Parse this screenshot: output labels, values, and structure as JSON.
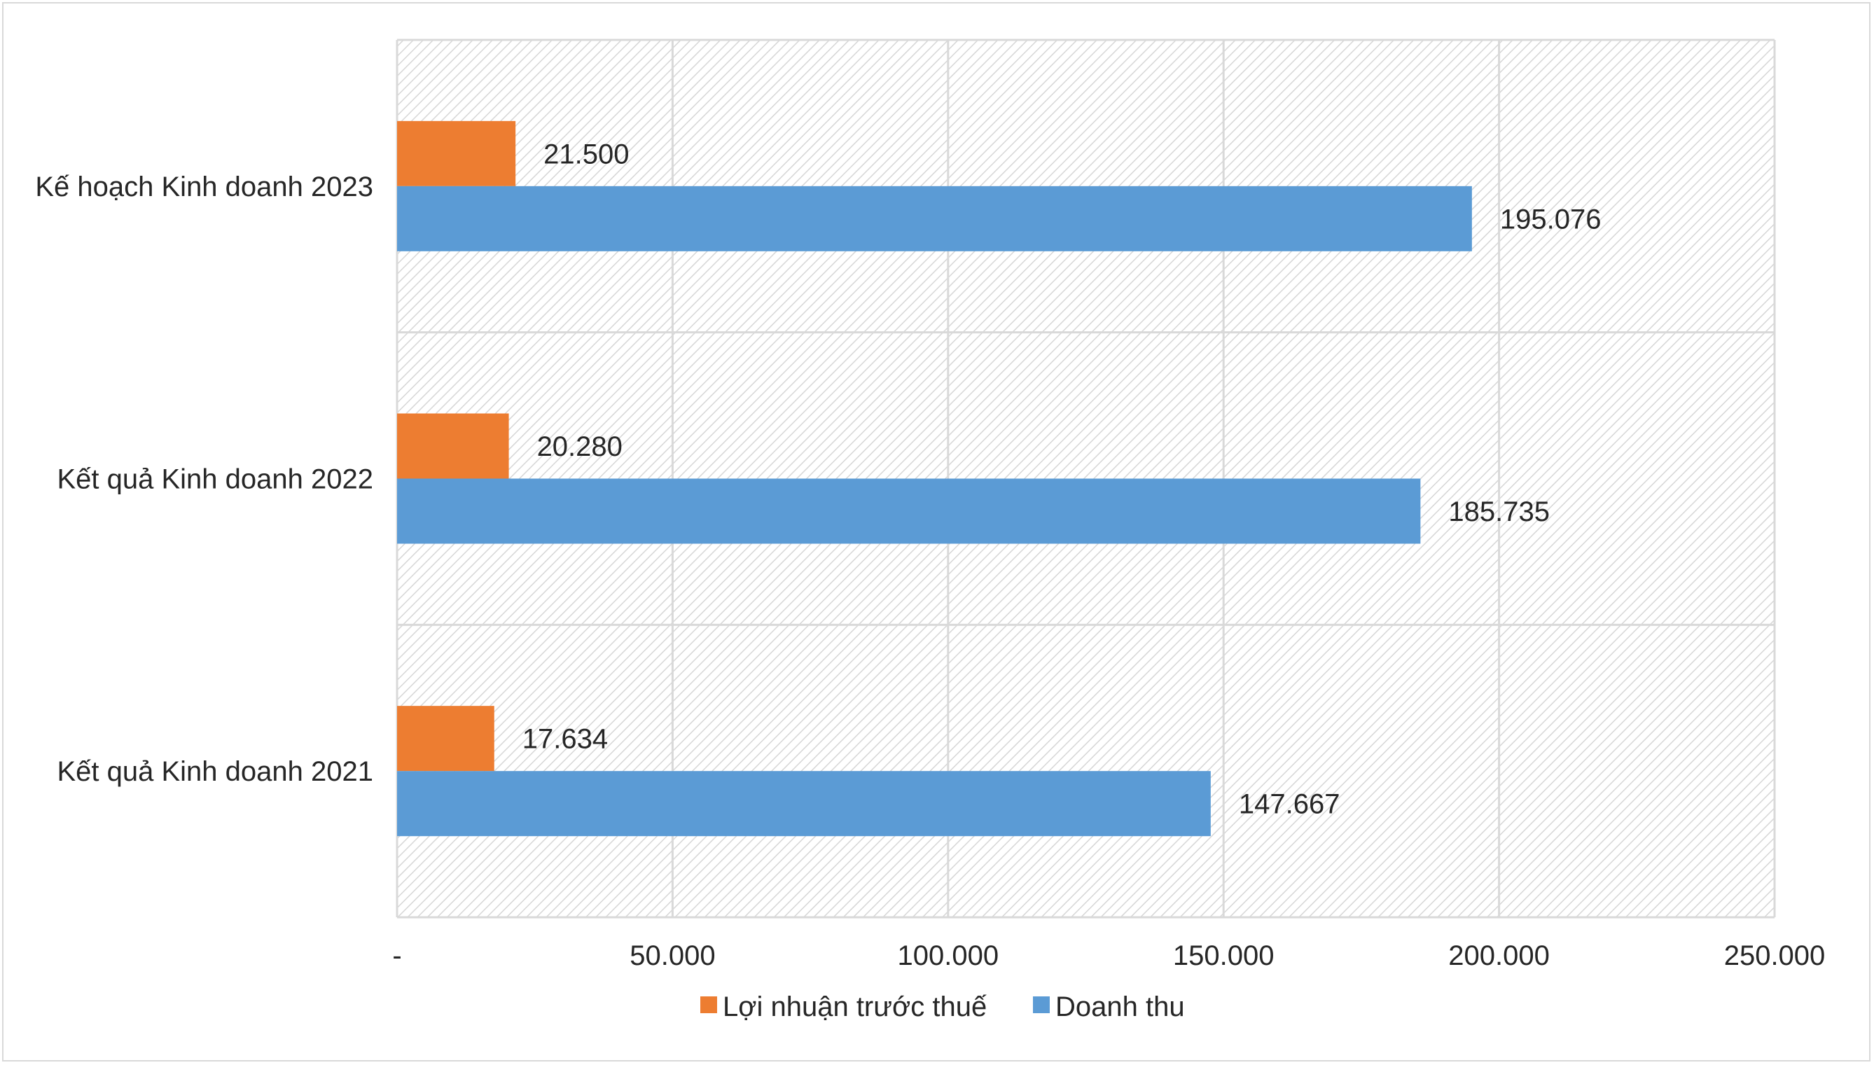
{
  "chart_data": {
    "type": "bar",
    "orientation": "horizontal",
    "categories": [
      "Kết quả Kinh doanh 2021",
      "Kết quả Kinh doanh 2022",
      "Kế hoạch Kinh doanh 2023"
    ],
    "series": [
      {
        "name": "Lợi nhuận trước thuế",
        "color": "#ed7d31",
        "values": [
          17634,
          20280,
          21500
        ],
        "labels": [
          "17.634",
          "20.280",
          "21.500"
        ]
      },
      {
        "name": "Doanh thu",
        "color": "#5b9bd5",
        "values": [
          147667,
          185735,
          195076
        ],
        "labels": [
          "147.667",
          "185.735",
          "195.076"
        ]
      }
    ],
    "xlim": [
      0,
      250000
    ],
    "xticks": [
      0,
      50000,
      100000,
      150000,
      200000,
      250000
    ],
    "xtick_labels": [
      "-",
      "50.000",
      "100.000",
      "150.000",
      "200.000",
      "250.000"
    ],
    "grid": true,
    "legend_position": "bottom",
    "plot_background": "hatched light gray"
  }
}
